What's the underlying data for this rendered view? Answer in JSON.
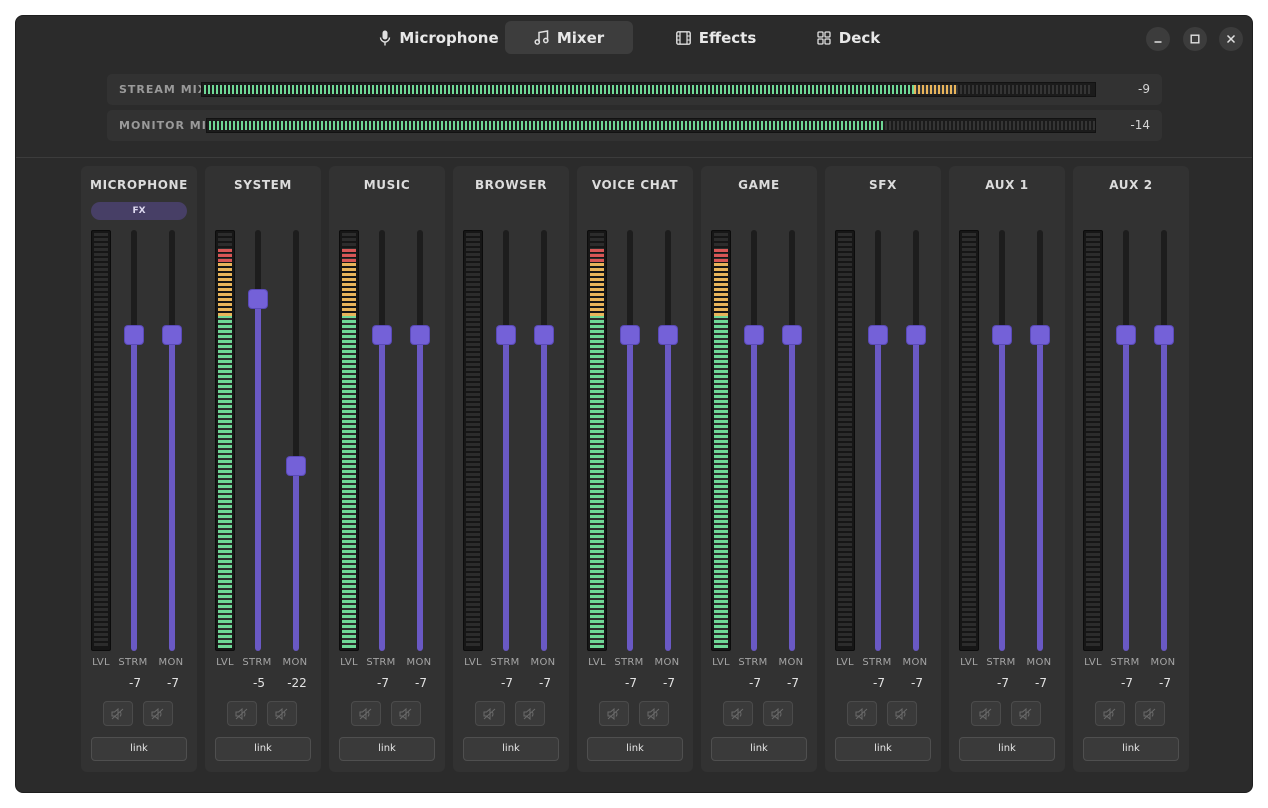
{
  "tabs": [
    {
      "label": "Microphone",
      "icon": "microphone-icon",
      "active": false
    },
    {
      "label": "Mixer",
      "icon": "music-note-icon",
      "active": true
    },
    {
      "label": "Effects",
      "icon": "film-icon",
      "active": false
    },
    {
      "label": "Deck",
      "icon": "grid-icon",
      "active": false
    }
  ],
  "window_controls": [
    "minimize-icon",
    "maximize-icon",
    "close-icon"
  ],
  "master": {
    "stream": {
      "label": "STREAM MIX",
      "value": "-9",
      "level_green": 0.8,
      "level_total": 0.85
    },
    "monitor": {
      "label": "MONITOR MIX",
      "value": "-14",
      "level_green": 0.76,
      "level_total": 0.76
    }
  },
  "column_labels": {
    "lvl": "LVL",
    "strm": "STRM",
    "mon": "MON"
  },
  "link_label": "link",
  "fx_label": "FX",
  "colors": {
    "accent": "#7461d8",
    "meter_green": "#6fd896",
    "meter_amber": "#e8b45a",
    "meter_red": "#d85656"
  },
  "channels": [
    {
      "name": "MICROPHONE",
      "fx": true,
      "strm_value": "-7",
      "mon_value": "-7",
      "strm_level": 0.75,
      "mon_level": 0.75,
      "meter_level": 0.0
    },
    {
      "name": "SYSTEM",
      "fx": false,
      "strm_value": "-5",
      "mon_value": "-22",
      "strm_level": 0.835,
      "mon_level": 0.44,
      "meter_level": 0.965
    },
    {
      "name": "MUSIC",
      "fx": false,
      "strm_value": "-7",
      "mon_value": "-7",
      "strm_level": 0.75,
      "mon_level": 0.75,
      "meter_level": 0.965
    },
    {
      "name": "BROWSER",
      "fx": false,
      "strm_value": "-7",
      "mon_value": "-7",
      "strm_level": 0.75,
      "mon_level": 0.75,
      "meter_level": 0.0
    },
    {
      "name": "VOICE CHAT",
      "fx": false,
      "strm_value": "-7",
      "mon_value": "-7",
      "strm_level": 0.75,
      "mon_level": 0.75,
      "meter_level": 0.965
    },
    {
      "name": "GAME",
      "fx": false,
      "strm_value": "-7",
      "mon_value": "-7",
      "strm_level": 0.75,
      "mon_level": 0.75,
      "meter_level": 0.965
    },
    {
      "name": "SFX",
      "fx": false,
      "strm_value": "-7",
      "mon_value": "-7",
      "strm_level": 0.75,
      "mon_level": 0.75,
      "meter_level": 0.0
    },
    {
      "name": "AUX 1",
      "fx": false,
      "strm_value": "-7",
      "mon_value": "-7",
      "strm_level": 0.75,
      "mon_level": 0.75,
      "meter_level": 0.0
    },
    {
      "name": "AUX 2",
      "fx": false,
      "strm_value": "-7",
      "mon_value": "-7",
      "strm_level": 0.75,
      "mon_level": 0.75,
      "meter_level": 0.0
    }
  ]
}
